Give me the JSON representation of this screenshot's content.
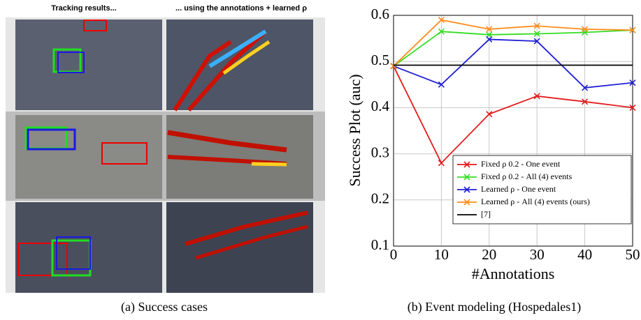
{
  "figure": {
    "left_header": "Tracking results...",
    "right_header": "... using the annotations + learned ρ",
    "caption_a": "(a) Success cases",
    "caption_b": "(b) Event modeling (Hospedales1)"
  },
  "chart_data": {
    "type": "line",
    "x_label": "#Annotations",
    "y_label": "Success Plot (auc)",
    "x": [
      0,
      10,
      20,
      30,
      40,
      50
    ],
    "series": [
      {
        "name": "Fixed ρ 0.2 - One event",
        "color": "#e41a1c",
        "values": [
          0.49,
          0.28,
          0.386,
          0.425,
          0.413,
          0.4
        ],
        "marker": "x"
      },
      {
        "name": "Fixed ρ 0.2 - All (4) events",
        "color": "#33dd22",
        "values": [
          0.49,
          0.565,
          0.558,
          0.56,
          0.563,
          0.568
        ],
        "marker": "x"
      },
      {
        "name": "Learned ρ - One event",
        "color": "#1f1fd6",
        "values": [
          0.49,
          0.45,
          0.548,
          0.544,
          0.443,
          0.454
        ],
        "marker": "x"
      },
      {
        "name": "Learned ρ - All (4) events (ours)",
        "color": "#ff8c1a",
        "values": [
          0.49,
          0.59,
          0.57,
          0.577,
          0.57,
          0.568
        ],
        "marker": "x"
      },
      {
        "name": "[7]",
        "color": "#000000",
        "values": [
          0.492,
          0.492,
          0.492,
          0.492,
          0.492,
          0.492
        ],
        "marker": "none"
      }
    ],
    "xlim": [
      0,
      50
    ],
    "xticks": [
      0,
      10,
      20,
      30,
      40,
      50
    ],
    "ylim": [
      0.1,
      0.6
    ],
    "yticks": [
      0.1,
      0.2,
      0.3,
      0.4,
      0.5,
      0.6
    ],
    "grid": true,
    "legend": "lower right"
  }
}
